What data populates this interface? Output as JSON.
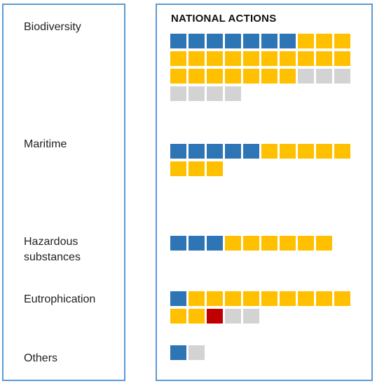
{
  "panel_title": "NATIONAL ACTIONS",
  "colors": {
    "blue": "#2e75b6",
    "yellow": "#ffc000",
    "grey": "#d3d3d3",
    "red": "#c00000",
    "border": "#5b9bd5"
  },
  "chart_data": {
    "type": "waffle",
    "title": "NATIONAL ACTIONS",
    "units_per_row": 10,
    "categories": [
      {
        "label": [
          "Biodiversity"
        ],
        "counts": {
          "blue": 7,
          "yellow": 20,
          "grey": 7,
          "red": 0
        }
      },
      {
        "label": [
          "Maritime"
        ],
        "counts": {
          "blue": 5,
          "yellow": 8,
          "grey": 0,
          "red": 0
        }
      },
      {
        "label": [
          "Hazardous",
          "substances"
        ],
        "counts": {
          "blue": 3,
          "yellow": 6,
          "grey": 0,
          "red": 0
        }
      },
      {
        "label": [
          "Eutrophication"
        ],
        "counts": {
          "blue": 1,
          "yellow": 11,
          "grey": 2,
          "red": 1
        }
      },
      {
        "label": [
          "Others"
        ],
        "counts": {
          "blue": 1,
          "yellow": 0,
          "grey": 1,
          "red": 0
        }
      }
    ]
  }
}
